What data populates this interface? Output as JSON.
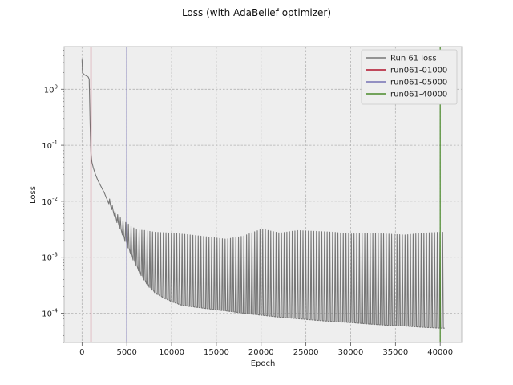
{
  "chart_data": {
    "type": "line",
    "title": "Loss (with AdaBelief optimizer)",
    "xlabel": "Epoch",
    "ylabel": "Loss",
    "yscale": "log",
    "xlim": [
      -2000,
      42400
    ],
    "ylim": [
      3e-05,
      5.8
    ],
    "grid": true,
    "legend_position": "top-right",
    "x_ticks": [
      0,
      5000,
      10000,
      15000,
      20000,
      25000,
      30000,
      35000,
      40000
    ],
    "x_tick_labels": [
      "0",
      "5000",
      "10000",
      "15000",
      "20000",
      "25000",
      "30000",
      "35000",
      "40000"
    ],
    "y_ticks": [
      0.0001,
      0.001,
      0.01,
      0.1,
      1
    ],
    "y_tick_labels": [
      {
        "base": "10",
        "exp": "-4"
      },
      {
        "base": "10",
        "exp": "-3"
      },
      {
        "base": "10",
        "exp": "-2"
      },
      {
        "base": "10",
        "exp": "-1"
      },
      {
        "base": "10",
        "exp": "0"
      }
    ],
    "series": [
      {
        "name": "Run 61 loss",
        "color": "#777777",
        "base_curve": {
          "x": [
            0,
            50,
            150,
            300,
            600,
            700,
            800,
            850,
            900,
            950,
            1000,
            1100,
            1250,
            1500,
            1750,
            2000,
            2500,
            3000,
            3500,
            4000,
            4500,
            5000,
            5500,
            6000,
            6500,
            7000,
            7500,
            8000,
            8500,
            9000,
            10000,
            11000,
            12000,
            13000,
            14000,
            15000,
            16000,
            18000,
            20000,
            22000,
            24000,
            26000,
            28000,
            30000,
            32000,
            34000,
            36000,
            38000,
            40000,
            40500
          ],
          "y": [
            3.4,
            2.0,
            1.9,
            1.8,
            1.7,
            1.65,
            1.5,
            0.6,
            0.25,
            0.12,
            0.07,
            0.05,
            0.04,
            0.03,
            0.024,
            0.02,
            0.014,
            0.009,
            0.006,
            0.0038,
            0.0025,
            0.0016,
            0.00105,
            0.0007,
            0.0005,
            0.00037,
            0.00029,
            0.00024,
            0.00021,
            0.00019,
            0.00016,
            0.00014,
            0.000132,
            0.000126,
            0.00012,
            0.000115,
            0.00011,
            0.0001,
            9.2e-05,
            8.5e-05,
            8e-05,
            7.5e-05,
            7.1e-05,
            6.8e-05,
            6.4e-05,
            6.1e-05,
            5.9e-05,
            5.6e-05,
            5.4e-05,
            5.4e-05
          ]
        },
        "spikes": {
          "start": 3000,
          "end": 40400,
          "period": 300,
          "peak": [
            [
              3000,
              0.011
            ],
            [
              3500,
              0.007
            ],
            [
              4000,
              0.0055
            ],
            [
              4500,
              0.0045
            ],
            [
              5000,
              0.004
            ],
            [
              5500,
              0.0035
            ],
            [
              6000,
              0.0031
            ],
            [
              7000,
              0.003
            ],
            [
              8000,
              0.0028
            ],
            [
              10000,
              0.0027
            ],
            [
              12000,
              0.0025
            ],
            [
              14000,
              0.0023
            ],
            [
              16000,
              0.0021
            ],
            [
              18000,
              0.0024
            ],
            [
              20000,
              0.0032
            ],
            [
              22000,
              0.0027
            ],
            [
              24000,
              0.003
            ],
            [
              26000,
              0.0029
            ],
            [
              28000,
              0.0028
            ],
            [
              30000,
              0.0026
            ],
            [
              32000,
              0.0027
            ],
            [
              34000,
              0.0026
            ],
            [
              36000,
              0.0025
            ],
            [
              38000,
              0.0027
            ],
            [
              40000,
              0.0028
            ],
            [
              40400,
              0.0028
            ]
          ]
        }
      },
      {
        "name": "run061-01000",
        "color": "#b0102a",
        "type": "vline",
        "x": 1000
      },
      {
        "name": "run061-05000",
        "color": "#7570b3",
        "type": "vline",
        "x": 5000
      },
      {
        "name": "run061-40000",
        "color": "#4a8a2a",
        "type": "vline",
        "x": 40000
      }
    ]
  }
}
